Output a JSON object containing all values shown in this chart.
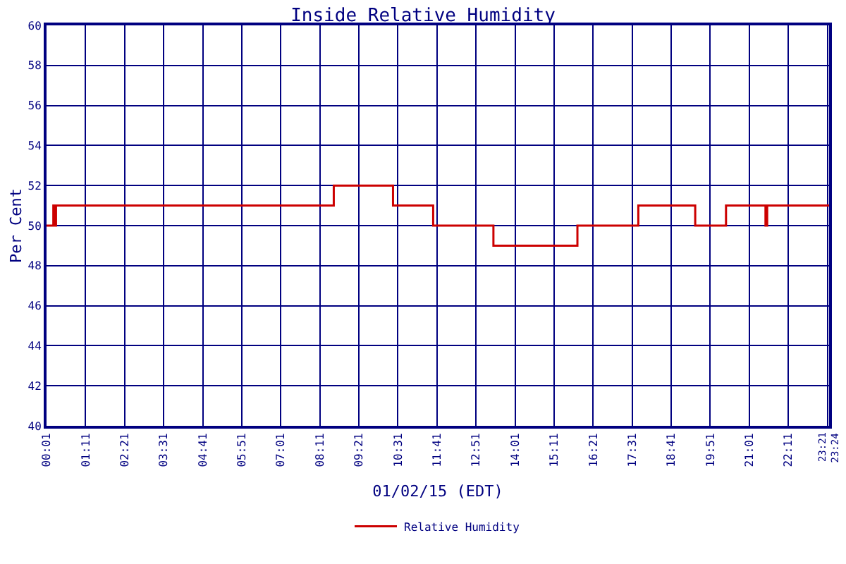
{
  "chart_data": {
    "type": "step",
    "title": "Inside Relative Humidity",
    "xlabel": "01/02/15 (EDT)",
    "ylabel": "Per Cent",
    "x": [
      0.0167,
      0.22,
      0.27,
      0.3,
      8.6,
      10.37,
      11.57,
      13.37,
      15.88,
      17.7,
      19.4,
      20.32,
      21.5,
      21.55,
      23.4
    ],
    "series": [
      {
        "name": "Relative Humidity",
        "color": "#cc0000",
        "values": [
          50,
          51,
          50,
          51,
          52,
          51,
          50,
          49,
          50,
          51,
          50,
          51,
          50,
          51,
          51
        ]
      }
    ],
    "xlim": [
      0.0167,
      23.4
    ],
    "xticks": [
      {
        "value": 0.0167,
        "label": "00:01"
      },
      {
        "value": 1.1833,
        "label": "01:11"
      },
      {
        "value": 2.35,
        "label": "02:21"
      },
      {
        "value": 3.5167,
        "label": "03:31"
      },
      {
        "value": 4.6833,
        "label": "04:41"
      },
      {
        "value": 5.85,
        "label": "05:51"
      },
      {
        "value": 7.0167,
        "label": "07:01"
      },
      {
        "value": 8.1833,
        "label": "08:11"
      },
      {
        "value": 9.35,
        "label": "09:21"
      },
      {
        "value": 10.5167,
        "label": "10:31"
      },
      {
        "value": 11.6833,
        "label": "11:41"
      },
      {
        "value": 12.85,
        "label": "12:51"
      },
      {
        "value": 14.0167,
        "label": "14:01"
      },
      {
        "value": 15.1833,
        "label": "15:11"
      },
      {
        "value": 16.35,
        "label": "16:21"
      },
      {
        "value": 17.5167,
        "label": "17:31"
      },
      {
        "value": 18.6833,
        "label": "18:41"
      },
      {
        "value": 19.85,
        "label": "19:51"
      },
      {
        "value": 21.0167,
        "label": "21:01"
      },
      {
        "value": 22.1833,
        "label": "22:11"
      },
      {
        "value": 23.35,
        "label": "23:21"
      },
      {
        "value": 23.4,
        "label": "23:24"
      }
    ],
    "ylim": [
      40,
      60
    ],
    "yticks": [
      40,
      42,
      44,
      46,
      48,
      50,
      52,
      54,
      56,
      58,
      60
    ],
    "grid": true,
    "legend": "bottom",
    "marker": "none",
    "line_style": "solid"
  }
}
